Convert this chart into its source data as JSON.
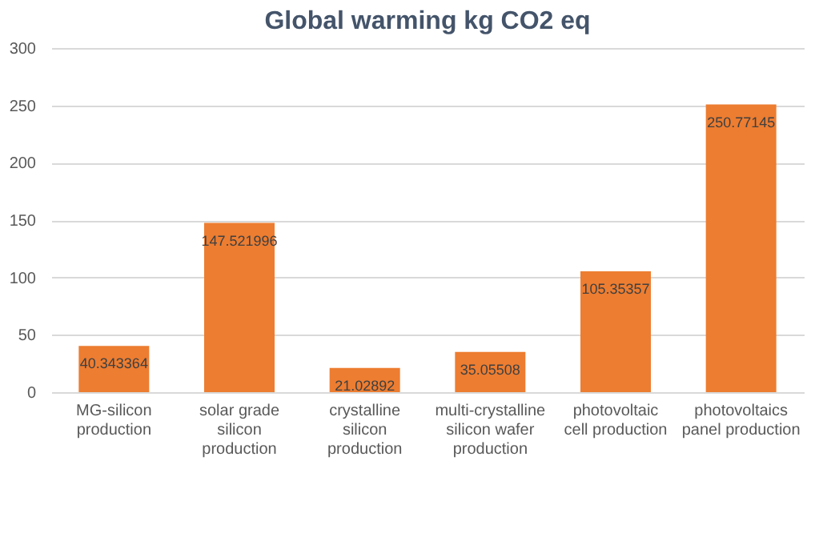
{
  "chart_data": {
    "type": "bar",
    "title": "Global warming kg CO2 eq",
    "categories": [
      "MG-silicon production",
      "solar grade silicon production",
      "crystalline silicon production",
      "multi-crystalline silicon wafer production",
      "photovoltaic cell production",
      "photovoltaics panel production"
    ],
    "values": [
      40.343364,
      147.521996,
      21.02892,
      35.05508,
      105.35357,
      250.77145
    ],
    "color": "#ed7d31",
    "ylim": [
      0,
      300
    ],
    "yticks": [
      0,
      50,
      100,
      150,
      200,
      250,
      300
    ],
    "grid": "y",
    "data_labels": true
  }
}
